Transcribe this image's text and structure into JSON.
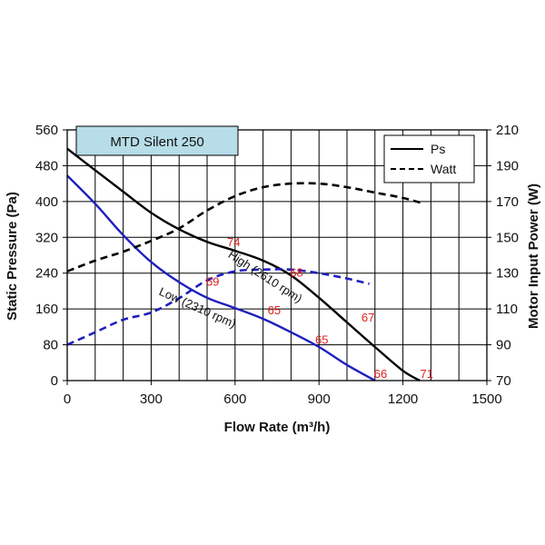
{
  "chart_data": {
    "type": "line",
    "title": "MTD Silent 250",
    "xlabel": "Flow Rate (m³/h)",
    "ylabel": "Static Pressure (Pa)",
    "y2label": "Motor Input Power (W)",
    "xlim": [
      0,
      1500
    ],
    "ylim": [
      0,
      560
    ],
    "y2lim": [
      70,
      210
    ],
    "x_ticks": [
      "0",
      "300",
      "600",
      "900",
      "1200",
      "1500"
    ],
    "y_ticks": [
      "0",
      "80",
      "160",
      "240",
      "320",
      "400",
      "480",
      "560"
    ],
    "y2_ticks": [
      "70",
      "90",
      "110",
      "130",
      "150",
      "170",
      "190",
      "210"
    ],
    "grid": true,
    "legend_position": "top-right",
    "legend": [
      {
        "label": "Ps",
        "style": "solid"
      },
      {
        "label": "Watt",
        "style": "dashed"
      }
    ],
    "series": [
      {
        "key": "high-ps",
        "axis": "left",
        "style": "solid",
        "color": "#000000",
        "x": [
          0,
          100,
          200,
          300,
          400,
          500,
          600,
          700,
          800,
          900,
          1000,
          1100,
          1200,
          1260
        ],
        "y": [
          518,
          470,
          422,
          375,
          338,
          310,
          290,
          268,
          235,
          185,
          130,
          75,
          22,
          0
        ]
      },
      {
        "key": "low-ps",
        "axis": "left",
        "style": "solid",
        "color": "#1f1fbf",
        "x": [
          0,
          100,
          200,
          300,
          400,
          500,
          600,
          700,
          800,
          900,
          1000,
          1100
        ],
        "y": [
          458,
          395,
          325,
          265,
          220,
          185,
          162,
          138,
          108,
          75,
          35,
          0
        ]
      },
      {
        "key": "high-watt",
        "axis": "right",
        "style": "dashed",
        "color": "#000000",
        "x": [
          0,
          100,
          200,
          300,
          400,
          500,
          600,
          700,
          800,
          900,
          1000,
          1100,
          1200,
          1270
        ],
        "y": [
          131,
          137,
          142,
          148,
          155,
          165,
          173,
          178,
          180,
          180,
          178,
          175,
          172,
          169
        ]
      },
      {
        "key": "low-watt",
        "axis": "right",
        "style": "dashed",
        "color": "#1f1fbf",
        "x": [
          0,
          100,
          200,
          300,
          400,
          500,
          600,
          700,
          800,
          900,
          1000,
          1080
        ],
        "y": [
          90,
          97,
          104,
          108,
          116,
          126,
          131,
          132,
          132,
          130,
          127,
          124
        ]
      }
    ],
    "curve_labels": [
      {
        "key": "high-label",
        "text": "High (2610 rpm)",
        "x": 700,
        "y": 225,
        "rotation": 33
      },
      {
        "key": "low-label",
        "text": "Low (2310 rpm)",
        "x": 460,
        "y": 155,
        "rotation": 24
      }
    ],
    "noise_labels": [
      {
        "text": "74",
        "x": 595,
        "y": 300
      },
      {
        "text": "69",
        "x": 520,
        "y": 212
      },
      {
        "text": "68",
        "x": 820,
        "y": 232
      },
      {
        "text": "65",
        "x": 740,
        "y": 148
      },
      {
        "text": "67",
        "x": 1075,
        "y": 132
      },
      {
        "text": "65",
        "x": 910,
        "y": 82
      },
      {
        "text": "66",
        "x": 1120,
        "y": 6
      },
      {
        "text": "71",
        "x": 1285,
        "y": 6
      }
    ]
  }
}
